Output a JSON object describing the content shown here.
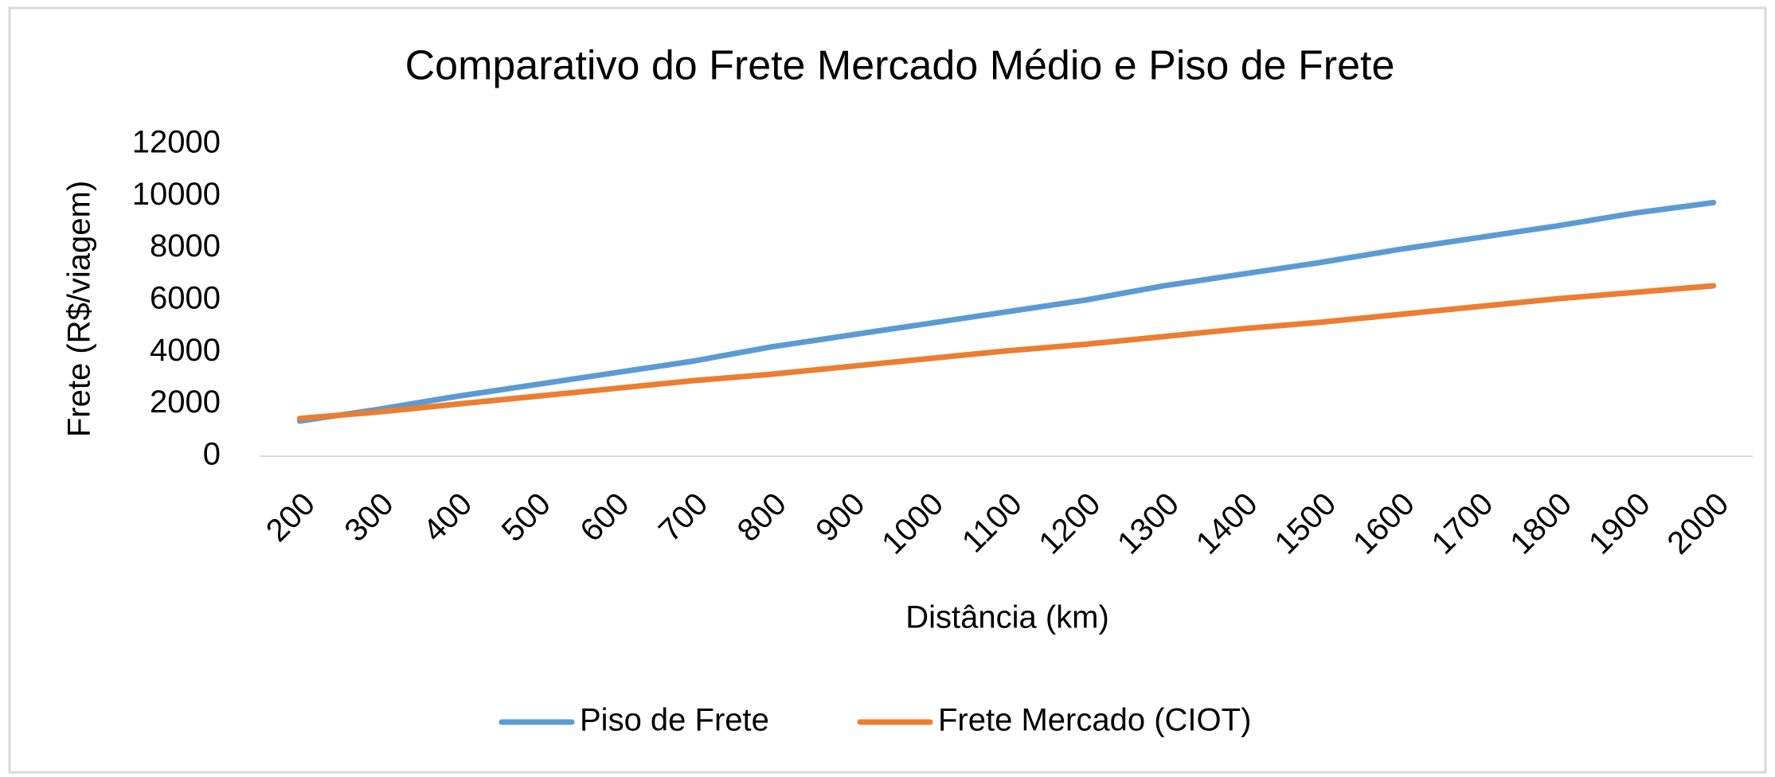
{
  "chart_data": {
    "type": "line",
    "title": "Comparativo do Frete Mercado Médio e Piso de Frete",
    "x_label": "Distância (km)",
    "y_label": "Frete (R$/viagem)",
    "categories": [
      "200",
      "300",
      "400",
      "500",
      "600",
      "700",
      "800",
      "900",
      "1000",
      "1100",
      "1200",
      "1300",
      "1400",
      "1500",
      "1600",
      "1700",
      "1800",
      "1900",
      "2000"
    ],
    "series": [
      {
        "name": "Piso de Frete",
        "color": "#5b9bd5",
        "values": [
          1350,
          1800,
          2300,
          2750,
          3200,
          3650,
          4200,
          4650,
          5100,
          5550,
          6000,
          6550,
          7000,
          7450,
          7950,
          8400,
          8850,
          9350,
          9750
        ]
      },
      {
        "name": "Frete Mercado (CIOT)",
        "color": "#ed7d31",
        "values": [
          1450,
          1700,
          2000,
          2300,
          2600,
          2900,
          3150,
          3450,
          3750,
          4050,
          4300,
          4600,
          4900,
          5150,
          5450,
          5750,
          6050,
          6300,
          6550
        ]
      }
    ],
    "ylim": [
      0,
      12000
    ],
    "yticks": [
      0,
      2000,
      4000,
      6000,
      8000,
      10000,
      12000
    ],
    "grid": false,
    "legend": "bottom"
  }
}
